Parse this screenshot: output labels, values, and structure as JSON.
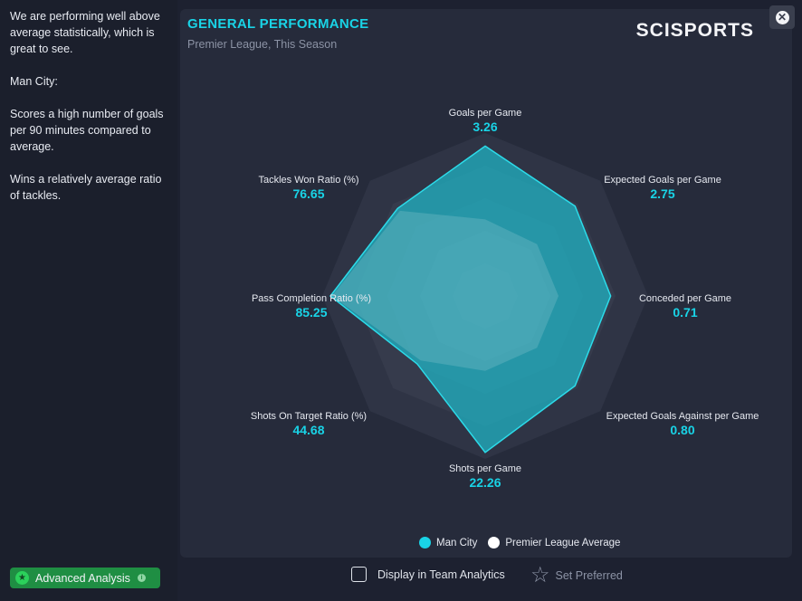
{
  "sidebar": {
    "paragraphs": [
      "We are performing well above average statistically, which is great to see.",
      "Man City:",
      "Scores a high number of goals per 90 minutes compared to average.",
      "Wins a relatively average ratio of tackles."
    ]
  },
  "panel": {
    "title": "GENERAL PERFORMANCE",
    "subtitle": "Premier League, This Season",
    "brand": "SCISPORTS"
  },
  "close_icon": "close-icon",
  "colors": {
    "accent": "#19d3e6",
    "team_fill": "#1fb7c7",
    "league_fill": "#ffffff",
    "panel_bg": "#262b3b",
    "green_button": "#1f8e43"
  },
  "chart_data": {
    "type": "radar",
    "axes": [
      {
        "label": "Goals per Game",
        "value_text": "3.26",
        "team": 0.92,
        "league": 0.47
      },
      {
        "label": "Expected Goals per Game",
        "value_text": "2.75",
        "team": 0.78,
        "league": 0.45
      },
      {
        "label": "Conceded per Game",
        "value_text": "0.71",
        "team": 0.77,
        "league": 0.45
      },
      {
        "label": "Expected Goals Against per Game",
        "value_text": "0.80",
        "team": 0.78,
        "league": 0.45
      },
      {
        "label": "Shots per Game",
        "value_text": "22.26",
        "team": 0.96,
        "league": 0.46
      },
      {
        "label": "Shots On Target Ratio (%)",
        "value_text": "44.68",
        "team": 0.59,
        "league": 0.56
      },
      {
        "label": "Pass Completion Ratio (%)",
        "value_text": "85.25",
        "team": 0.95,
        "league": 0.94
      },
      {
        "label": "Tackles Won Ratio (%)",
        "value_text": "76.65",
        "team": 0.76,
        "league": 0.74
      }
    ],
    "series": [
      {
        "name": "Man City"
      },
      {
        "name": "Premier League Average"
      }
    ]
  },
  "legend": {
    "team_label": "Man City",
    "league_label": "Premier League Average"
  },
  "footer": {
    "advanced_label": "Advanced Analysis",
    "display_label": "Display in Team Analytics",
    "display_checked": false,
    "preferred_label": "Set Preferred"
  }
}
